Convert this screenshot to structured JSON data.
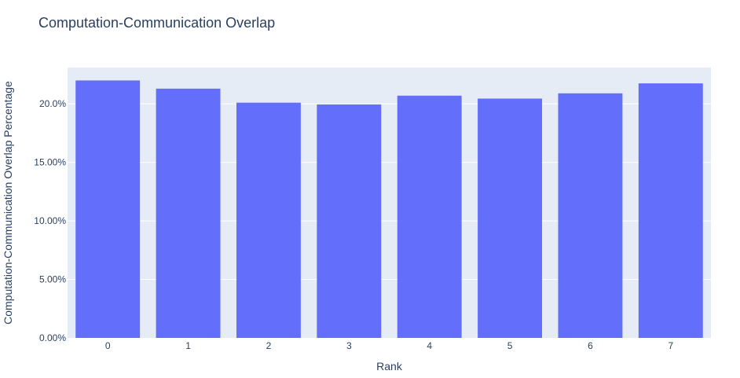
{
  "chart_data": {
    "type": "bar",
    "title": "Computation-Communication Overlap",
    "xlabel": "Rank",
    "ylabel": "Computation-Communication Overlap Percentage",
    "categories": [
      "0",
      "1",
      "2",
      "3",
      "4",
      "5",
      "6",
      "7"
    ],
    "values": [
      22.0,
      21.3,
      20.1,
      19.95,
      20.7,
      20.45,
      20.9,
      21.75
    ],
    "ylim": [
      0,
      23.1
    ],
    "yticks": [
      0,
      5,
      10,
      15,
      20
    ],
    "ytick_labels": [
      "0.00%",
      "5.00%",
      "10.00%",
      "15.00%",
      "20.0%"
    ],
    "grid": true,
    "colors": {
      "bar": "#636efa",
      "plot_bg": "#e5ecf6",
      "grid": "#ffffff",
      "text": "#2a3f5f"
    }
  }
}
